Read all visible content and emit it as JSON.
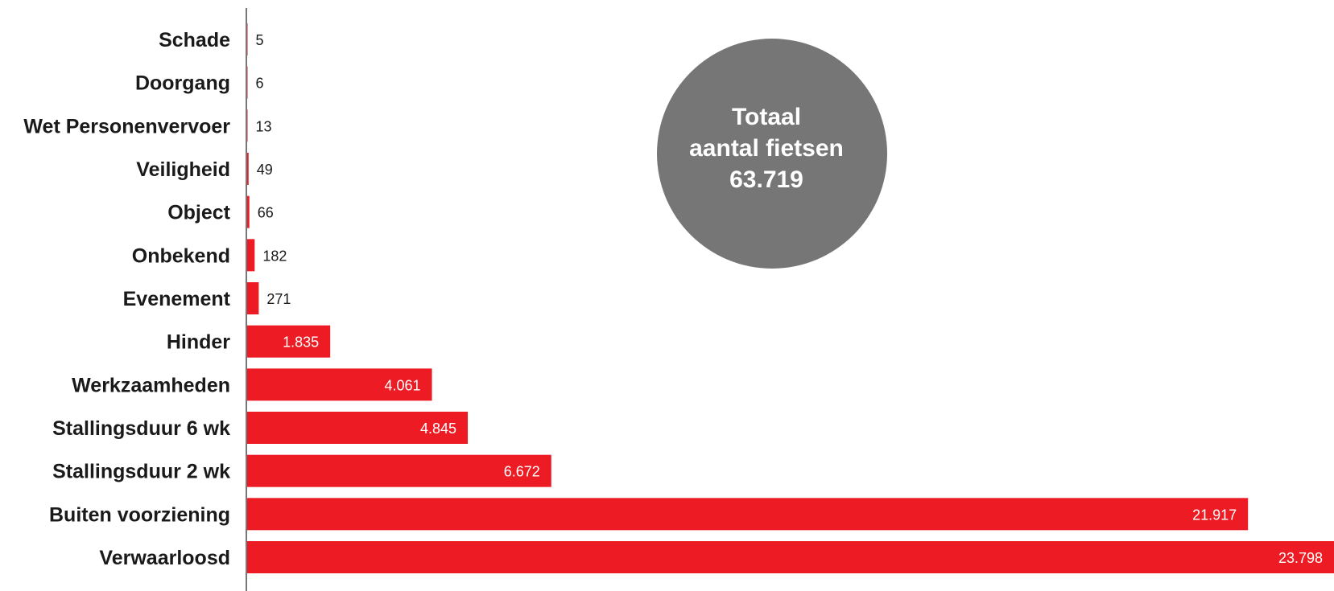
{
  "chart_data": {
    "type": "bar",
    "orientation": "horizontal",
    "categories": [
      "Schade",
      "Doorgang",
      "Wet Personenvervoer",
      "Veiligheid",
      "Object",
      "Onbekend",
      "Evenement",
      "Hinder",
      "Werkzaamheden",
      "Stallingsduur 6 wk",
      "Stallingsduur 2 wk",
      "Buiten voorziening",
      "Verwaarloosd"
    ],
    "values": [
      5,
      6,
      13,
      49,
      66,
      182,
      271,
      1835,
      4061,
      4845,
      6672,
      21917,
      23798
    ],
    "value_labels": [
      "5",
      "6",
      "13",
      "49",
      "66",
      "182",
      "271",
      "1.835",
      "4.061",
      "4.845",
      "6.672",
      "21.917",
      "23.798"
    ],
    "xlim": [
      0,
      23798
    ],
    "grid": false,
    "colors": {
      "bar": "#ed1c24",
      "axis": "#777777",
      "label_inside": "#ffffff",
      "label_outside": "#1a1a1a"
    }
  },
  "total_badge": {
    "line1": "Totaal",
    "line2": "aantal fietsen",
    "line3": "63.719",
    "color": "#767676"
  }
}
